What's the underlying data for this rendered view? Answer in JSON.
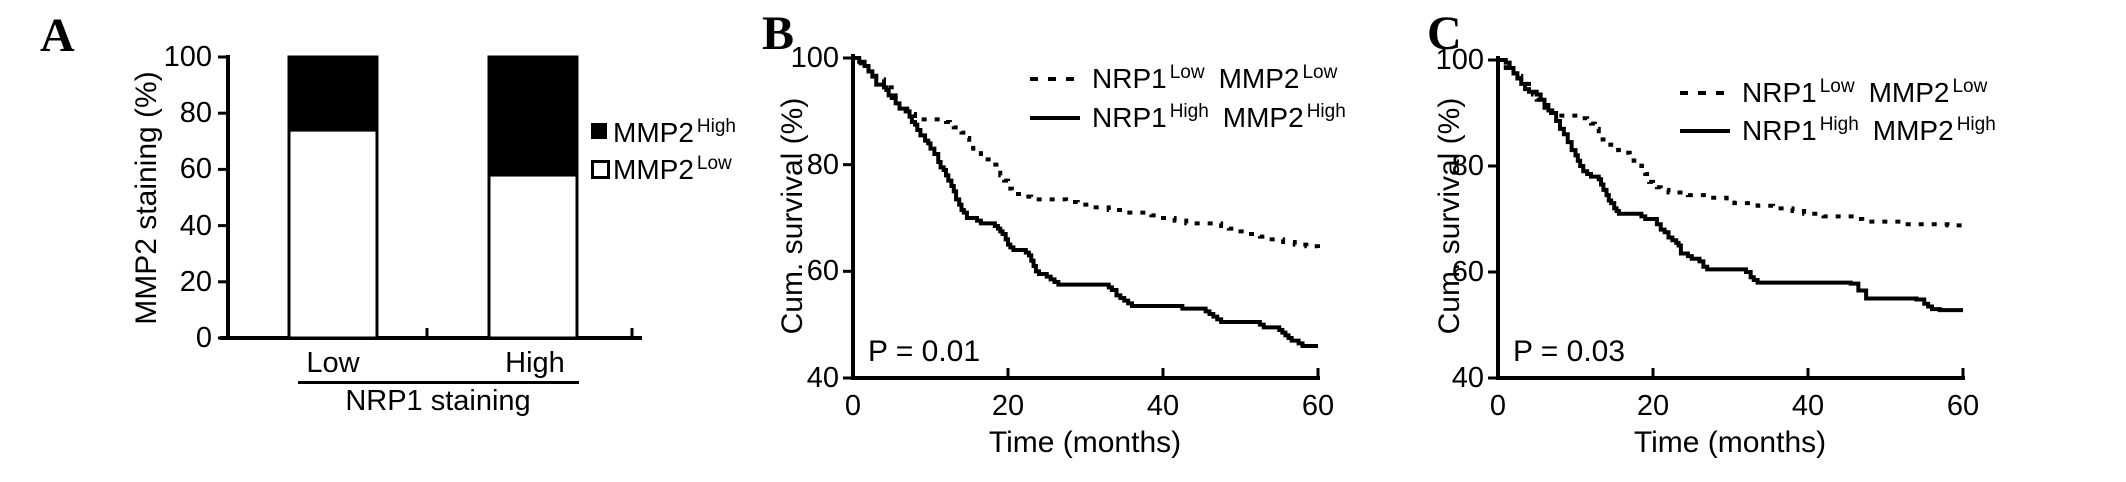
{
  "figure": {
    "background": "#ffffff",
    "ink": "#000000"
  },
  "panels": {
    "A": {
      "label": "A",
      "y_axis": {
        "title": "MMP2 staining (%)",
        "ticks": [
          "100",
          "80",
          "60",
          "40",
          "20",
          "0"
        ]
      },
      "x_axis": {
        "categories": [
          "Low",
          "High"
        ],
        "group_label": "NRP1 staining"
      },
      "legend": [
        {
          "marker": "filled-square",
          "base": "MMP2",
          "sup": "High"
        },
        {
          "marker": "open-square",
          "base": "MMP2",
          "sup": "Low"
        }
      ]
    },
    "B": {
      "label": "B",
      "p_value": "P = 0.01",
      "y_axis": {
        "title": "Cum. survival (%)",
        "ticks": [
          "100",
          "80",
          "60",
          "40"
        ]
      },
      "x_axis": {
        "title": "Time (months)",
        "ticks": [
          "0",
          "20",
          "40",
          "60"
        ]
      },
      "legend": [
        {
          "line": "dotted",
          "base1": "NRP1",
          "sup1": "Low",
          "base2": "MMP2",
          "sup2": "Low"
        },
        {
          "line": "solid",
          "base1": "NRP1",
          "sup1": "High",
          "base2": "MMP2",
          "sup2": "High"
        }
      ]
    },
    "C": {
      "label": "C",
      "p_value": "P = 0.03",
      "y_axis": {
        "title": "Cum. survival (%)",
        "ticks": [
          "100",
          "80",
          "60",
          "40"
        ]
      },
      "x_axis": {
        "title": "Time (months)",
        "ticks": [
          "0",
          "20",
          "40",
          "60"
        ]
      },
      "legend": [
        {
          "line": "dotted",
          "base1": "NRP1",
          "sup1": "Low",
          "base2": "MMP2",
          "sup2": "Low"
        },
        {
          "line": "solid",
          "base1": "NRP1",
          "sup1": "High",
          "base2": "MMP2",
          "sup2": "High"
        }
      ]
    }
  },
  "chart_data": [
    {
      "type": "bar",
      "stacked": true,
      "categories": [
        "Low",
        "High"
      ],
      "series": [
        {
          "name": "MMP2 Low (open)",
          "values": [
            74,
            58
          ]
        },
        {
          "name": "MMP2 High (filled)",
          "values": [
            26,
            42
          ]
        }
      ],
      "xlabel": "NRP1 staining",
      "ylabel": "MMP2 staining (%)",
      "ylim": [
        0,
        100
      ],
      "yticks": [
        0,
        20,
        40,
        60,
        80,
        100
      ],
      "legend_position": "right"
    },
    {
      "type": "line",
      "subtype": "kaplan-meier-step",
      "annotation": "P = 0.01",
      "xlabel": "Time (months)",
      "ylabel": "Cum. survival (%)",
      "xlim": [
        0,
        60
      ],
      "ylim": [
        40,
        100
      ],
      "xticks": [
        0,
        20,
        40,
        60
      ],
      "yticks": [
        40,
        60,
        80,
        100
      ],
      "legend_position": "top-right",
      "series": [
        {
          "name": "NRP1 Low MMP2 Low",
          "style": "dotted",
          "points": [
            [
              0,
              100
            ],
            [
              1,
              99
            ],
            [
              2,
              97.5
            ],
            [
              3,
              96
            ],
            [
              4,
              94.5
            ],
            [
              5,
              93
            ],
            [
              5.5,
              92
            ],
            [
              6,
              91
            ],
            [
              6.5,
              90
            ],
            [
              7,
              89.5
            ],
            [
              8,
              88.5
            ],
            [
              12,
              88
            ],
            [
              12.5,
              87.5
            ],
            [
              13,
              87
            ],
            [
              14,
              86
            ],
            [
              14.5,
              85
            ],
            [
              15,
              84
            ],
            [
              15.5,
              83
            ],
            [
              16.5,
              82
            ],
            [
              17,
              81
            ],
            [
              17.5,
              80
            ],
            [
              18.5,
              79
            ],
            [
              19,
              78
            ],
            [
              19.5,
              77
            ],
            [
              20,
              75.5
            ],
            [
              20.5,
              75
            ],
            [
              21,
              74.5
            ],
            [
              22,
              74
            ],
            [
              23,
              73.5
            ],
            [
              27.5,
              73
            ],
            [
              29,
              72.5
            ],
            [
              31,
              72
            ],
            [
              33,
              71.5
            ],
            [
              35,
              71
            ],
            [
              38.5,
              70.5
            ],
            [
              40,
              70
            ],
            [
              41.5,
              69.5
            ],
            [
              43,
              69
            ],
            [
              47.5,
              68.5
            ],
            [
              48.5,
              68
            ],
            [
              50,
              67.5
            ],
            [
              51,
              67
            ],
            [
              52.5,
              66.5
            ],
            [
              53.5,
              66
            ],
            [
              55.5,
              65.5
            ],
            [
              57,
              65
            ],
            [
              58.5,
              64.7
            ],
            [
              60,
              64.3
            ]
          ]
        },
        {
          "name": "NRP1 High MMP2 High",
          "style": "solid",
          "points": [
            [
              0,
              100
            ],
            [
              0.8,
              99.3
            ],
            [
              1.5,
              98.5
            ],
            [
              2,
              97.5
            ],
            [
              2.5,
              96.5
            ],
            [
              3,
              95
            ],
            [
              4,
              94.5
            ],
            [
              4.3,
              94
            ],
            [
              4.6,
              93
            ],
            [
              5,
              92.5
            ],
            [
              5.5,
              91.5
            ],
            [
              6,
              90.5
            ],
            [
              7,
              90
            ],
            [
              7.3,
              89
            ],
            [
              7.6,
              88
            ],
            [
              8,
              87.5
            ],
            [
              8.3,
              86.5
            ],
            [
              8.7,
              85.5
            ],
            [
              9.3,
              84.5
            ],
            [
              9.7,
              84
            ],
            [
              10,
              83
            ],
            [
              10.5,
              82
            ],
            [
              11,
              80.5
            ],
            [
              11.3,
              79.5
            ],
            [
              11.7,
              79
            ],
            [
              12,
              78
            ],
            [
              12.3,
              77
            ],
            [
              12.7,
              76
            ],
            [
              13,
              75
            ],
            [
              13.3,
              73.5
            ],
            [
              13.7,
              72.5
            ],
            [
              14,
              71.5
            ],
            [
              14.3,
              71
            ],
            [
              14.7,
              70
            ],
            [
              16,
              69.5
            ],
            [
              16.5,
              69
            ],
            [
              18.3,
              68.5
            ],
            [
              18.7,
              68
            ],
            [
              19,
              67.5
            ],
            [
              19.3,
              67
            ],
            [
              19.7,
              66
            ],
            [
              20,
              65
            ],
            [
              20.3,
              64.5
            ],
            [
              20.7,
              64
            ],
            [
              22.3,
              63.5
            ],
            [
              22.7,
              63
            ],
            [
              23,
              62
            ],
            [
              23.3,
              61
            ],
            [
              23.6,
              60
            ],
            [
              24,
              59.5
            ],
            [
              25,
              59
            ],
            [
              25.5,
              58.5
            ],
            [
              26,
              58
            ],
            [
              26.5,
              57.5
            ],
            [
              33,
              57
            ],
            [
              33.4,
              56.5
            ],
            [
              34,
              55.5
            ],
            [
              34.5,
              55
            ],
            [
              35,
              54.5
            ],
            [
              35.5,
              54
            ],
            [
              36,
              53.5
            ],
            [
              42.5,
              53
            ],
            [
              45.5,
              52.5
            ],
            [
              46,
              52
            ],
            [
              46.5,
              51.5
            ],
            [
              47,
              51
            ],
            [
              47.5,
              50.5
            ],
            [
              52.5,
              50
            ],
            [
              53,
              49.5
            ],
            [
              55,
              49
            ],
            [
              55.4,
              48.5
            ],
            [
              55.8,
              48
            ],
            [
              56.2,
              47.5
            ],
            [
              56.6,
              47
            ],
            [
              57.5,
              46.5
            ],
            [
              58,
              46
            ],
            [
              60,
              46
            ]
          ]
        }
      ]
    },
    {
      "type": "line",
      "subtype": "kaplan-meier-step",
      "annotation": "P = 0.03",
      "xlabel": "Time (months)",
      "ylabel": "Cum. survival (%)",
      "xlim": [
        0,
        60
      ],
      "ylim": [
        40,
        100
      ],
      "xticks": [
        0,
        20,
        40,
        60
      ],
      "yticks": [
        40,
        60,
        80,
        100
      ],
      "legend_position": "top-right",
      "series": [
        {
          "name": "NRP1 Low MMP2 Low",
          "style": "dotted",
          "points": [
            [
              0,
              100
            ],
            [
              1,
              98.5
            ],
            [
              2,
              97
            ],
            [
              3,
              95.5
            ],
            [
              4,
              94.5
            ],
            [
              4.5,
              93.5
            ],
            [
              5,
              92.5
            ],
            [
              5.5,
              92
            ],
            [
              6,
              91
            ],
            [
              6.5,
              90
            ],
            [
              7,
              89.5
            ],
            [
              10.5,
              89
            ],
            [
              11.5,
              88.5
            ],
            [
              12,
              88
            ],
            [
              12.5,
              87
            ],
            [
              13,
              86
            ],
            [
              13.5,
              85
            ],
            [
              14.5,
              84
            ],
            [
              15.5,
              83
            ],
            [
              16.5,
              82.5
            ],
            [
              17,
              82
            ],
            [
              17.5,
              81
            ],
            [
              18.5,
              80
            ],
            [
              19,
              78.5
            ],
            [
              19.5,
              77
            ],
            [
              20,
              76.5
            ],
            [
              20.5,
              76
            ],
            [
              21,
              75.5
            ],
            [
              22,
              75
            ],
            [
              24.5,
              74.5
            ],
            [
              27,
              74
            ],
            [
              29.5,
              73.5
            ],
            [
              30.5,
              73
            ],
            [
              33.5,
              72.5
            ],
            [
              35.5,
              72
            ],
            [
              38,
              71.5
            ],
            [
              39.5,
              71
            ],
            [
              42,
              70.5
            ],
            [
              46,
              70
            ],
            [
              47,
              69.5
            ],
            [
              52,
              69
            ],
            [
              58,
              68.8
            ],
            [
              60,
              68.5
            ]
          ]
        },
        {
          "name": "NRP1 High MMP2 High",
          "style": "solid",
          "points": [
            [
              0,
              100
            ],
            [
              1,
              99.5
            ],
            [
              1.5,
              98.5
            ],
            [
              2,
              97.5
            ],
            [
              2.5,
              96.5
            ],
            [
              3,
              95.5
            ],
            [
              3.5,
              94.5
            ],
            [
              4,
              94
            ],
            [
              5,
              93.5
            ],
            [
              5.5,
              92.5
            ],
            [
              6,
              91.5
            ],
            [
              6.5,
              90.5
            ],
            [
              7,
              90
            ],
            [
              7.5,
              88.5
            ],
            [
              8,
              87
            ],
            [
              8.5,
              86
            ],
            [
              9,
              84.5
            ],
            [
              9.5,
              83
            ],
            [
              10,
              82
            ],
            [
              10.3,
              81
            ],
            [
              10.6,
              80
            ],
            [
              11,
              79
            ],
            [
              11.5,
              78.5
            ],
            [
              12,
              78
            ],
            [
              13,
              77.5
            ],
            [
              13.3,
              76.5
            ],
            [
              13.6,
              75.5
            ],
            [
              14,
              74.5
            ],
            [
              14.3,
              73.5
            ],
            [
              14.6,
              73
            ],
            [
              15,
              72
            ],
            [
              15.3,
              71.5
            ],
            [
              15.6,
              71
            ],
            [
              18.5,
              70.5
            ],
            [
              19,
              70
            ],
            [
              20.5,
              69
            ],
            [
              21,
              68
            ],
            [
              21.5,
              67.5
            ],
            [
              22,
              66.5
            ],
            [
              22.5,
              66
            ],
            [
              23,
              65.5
            ],
            [
              23.3,
              65
            ],
            [
              23.6,
              63.5
            ],
            [
              24.5,
              63
            ],
            [
              25,
              62.5
            ],
            [
              26,
              62
            ],
            [
              26.5,
              61
            ],
            [
              27,
              60.5
            ],
            [
              32,
              60
            ],
            [
              32.6,
              59
            ],
            [
              33,
              58.5
            ],
            [
              33.5,
              58
            ],
            [
              45.5,
              57.8
            ],
            [
              46.5,
              56.5
            ],
            [
              47.5,
              55
            ],
            [
              54,
              54.8
            ],
            [
              55,
              54
            ],
            [
              55.5,
              53.5
            ],
            [
              56,
              53
            ],
            [
              57,
              52.8
            ],
            [
              60,
              52.8
            ]
          ]
        }
      ]
    }
  ]
}
